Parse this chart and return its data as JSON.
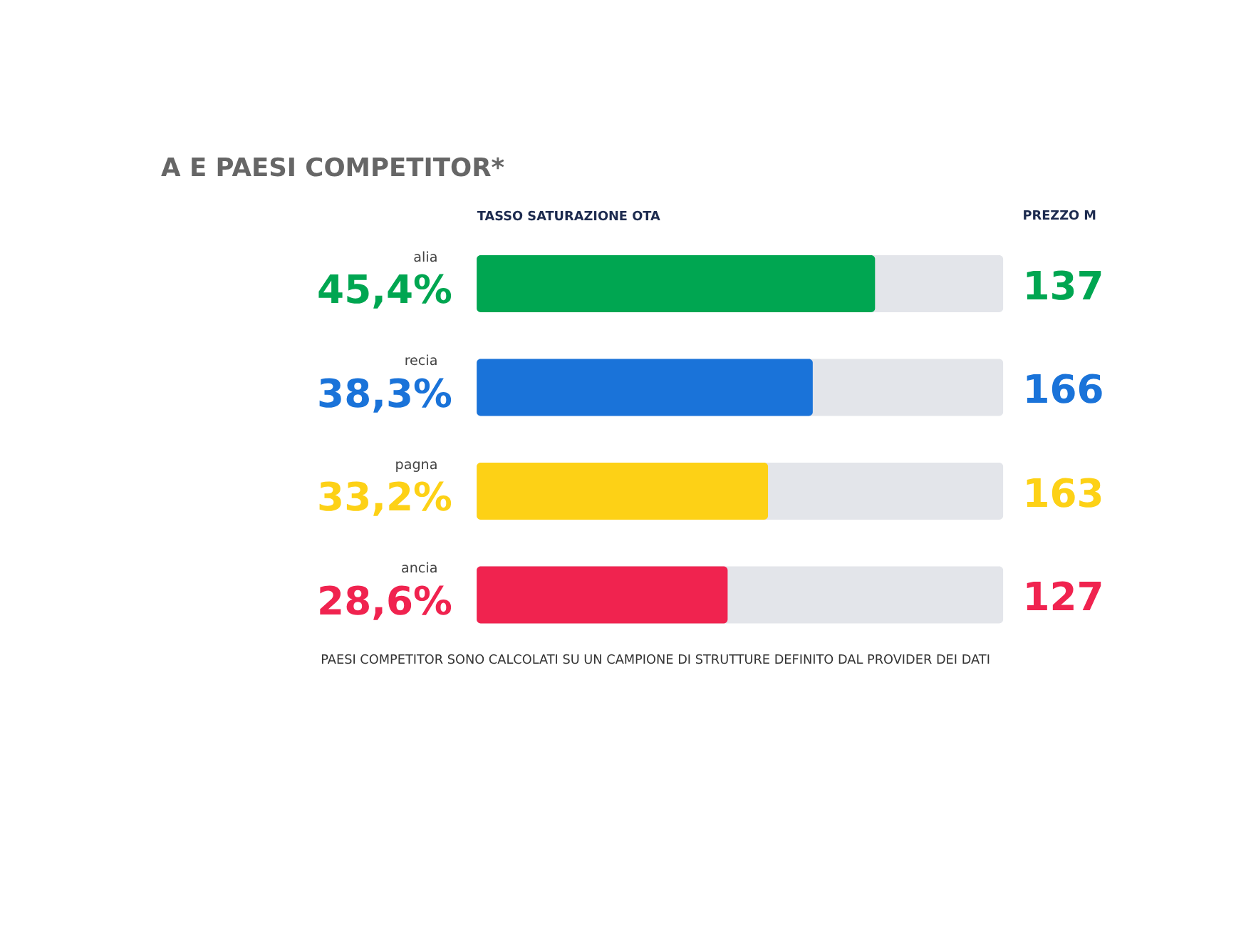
{
  "chart_data": {
    "type": "bar",
    "orientation": "horizontal",
    "title": "A E PAESI COMPETITOR*",
    "xlabel": "TASSO SATURAZIONE OTA",
    "categories": [
      "alia",
      "recia",
      "pagna",
      "ancia"
    ],
    "values": [
      45.4,
      38.3,
      33.2,
      28.6
    ],
    "value_labels": [
      "45,4%",
      "38,3%",
      "33,2%",
      "28,6%"
    ],
    "colors": [
      "#00a651",
      "#1a73d9",
      "#fdd116",
      "#f0234f"
    ],
    "xlim": [
      0,
      60
    ],
    "tick_labels": false,
    "grid": false,
    "annotations": [
      "PREZZO M",
      "PAESI COMPETITOR SONO CALCOLATI SU UN CAMPIONE DI STRUTTURE DEFINITO DAL PROVIDER DEI DATI",
      "137",
      "166",
      "163",
      "127"
    ]
  }
}
